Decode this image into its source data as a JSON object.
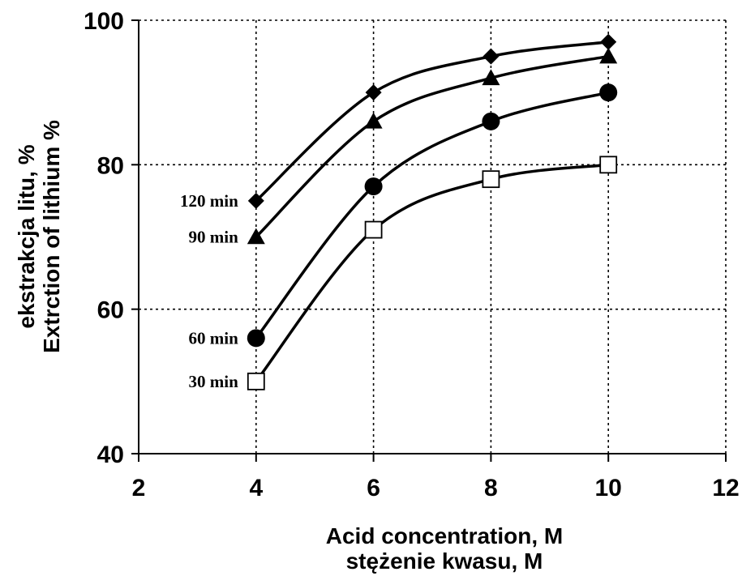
{
  "chart_data": {
    "type": "line",
    "xlabel": [
      "Acid concentration, M",
      "stężenie kwasu, M"
    ],
    "ylabel": [
      "ekstrakcja litu, %",
      "Extrction of lithium %"
    ],
    "xlim": [
      2,
      12
    ],
    "ylim": [
      40,
      100
    ],
    "xticks": [
      2,
      4,
      6,
      8,
      10,
      12
    ],
    "yticks": [
      40,
      60,
      80,
      100
    ],
    "grid": true,
    "series": [
      {
        "name": "120 min",
        "marker": "diamond",
        "x": [
          4,
          6,
          8,
          10
        ],
        "y": [
          75,
          90,
          95,
          97
        ]
      },
      {
        "name": "90 min",
        "marker": "triangle",
        "x": [
          4,
          6,
          8,
          10
        ],
        "y": [
          70,
          86,
          92,
          95
        ]
      },
      {
        "name": "60 min",
        "marker": "circle",
        "x": [
          4,
          6,
          8,
          10
        ],
        "y": [
          56,
          77,
          86,
          90
        ]
      },
      {
        "name": "30 min",
        "marker": "open-square",
        "x": [
          4,
          6,
          8,
          10
        ],
        "y": [
          50,
          71,
          78,
          80
        ]
      }
    ]
  }
}
